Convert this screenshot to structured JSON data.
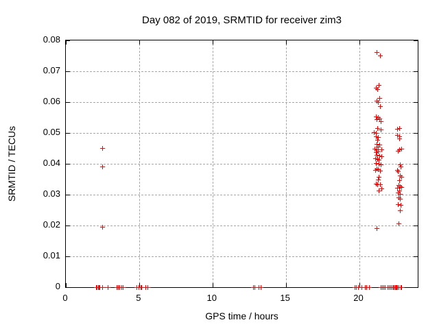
{
  "chart_data": {
    "type": "scatter",
    "title": "Day 082 of 2019, SRMTID for receiver zim3",
    "xlabel": "GPS time / hours",
    "ylabel": "SRMTID / TECUs",
    "xlim": [
      0,
      24
    ],
    "ylim": [
      0,
      0.08
    ],
    "xticks": [
      0,
      5,
      10,
      15,
      20
    ],
    "xtick_labels": [
      "0",
      "5",
      "10",
      "15",
      "20"
    ],
    "yticks": [
      0,
      0.01,
      0.02,
      0.03,
      0.04,
      0.05,
      0.06,
      0.07,
      0.08
    ],
    "ytick_labels": [
      "0",
      "0.01",
      "0.02",
      "0.03",
      "0.04",
      "0.05",
      "0.06",
      "0.07",
      "0.08"
    ],
    "grid": true,
    "legend": "none",
    "marker": "plus",
    "marker_color": "#ff0000",
    "series": [
      {
        "name": "SRMTID",
        "points": [
          [
            2.49,
            0.0451
          ],
          [
            2.5,
            0.039
          ],
          [
            2.48,
            0.0195
          ],
          [
            21.22,
            0.0762
          ],
          [
            21.45,
            0.075
          ],
          [
            21.36,
            0.0655
          ],
          [
            21.17,
            0.0645
          ],
          [
            21.28,
            0.0641
          ],
          [
            21.4,
            0.0612
          ],
          [
            21.2,
            0.0603
          ],
          [
            21.31,
            0.06
          ],
          [
            21.47,
            0.0585
          ],
          [
            21.19,
            0.0553
          ],
          [
            21.3,
            0.0549
          ],
          [
            21.23,
            0.0544
          ],
          [
            21.4,
            0.0545
          ],
          [
            21.5,
            0.0536
          ],
          [
            21.28,
            0.0514
          ],
          [
            21.5,
            0.0511
          ],
          [
            21.04,
            0.0501
          ],
          [
            21.18,
            0.0499
          ],
          [
            21.17,
            0.0488
          ],
          [
            21.31,
            0.0486
          ],
          [
            21.25,
            0.0477
          ],
          [
            21.2,
            0.0463
          ],
          [
            21.4,
            0.0461
          ],
          [
            21.3,
            0.0454
          ],
          [
            21.08,
            0.0448
          ],
          [
            21.2,
            0.0446
          ],
          [
            21.53,
            0.0446
          ],
          [
            21.3,
            0.0439
          ],
          [
            21.17,
            0.0437
          ],
          [
            21.2,
            0.0428
          ],
          [
            21.4,
            0.0426
          ],
          [
            21.53,
            0.0424
          ],
          [
            21.1,
            0.0417
          ],
          [
            21.27,
            0.0415
          ],
          [
            21.35,
            0.0412
          ],
          [
            21.17,
            0.0401
          ],
          [
            21.35,
            0.0399
          ],
          [
            21.48,
            0.0397
          ],
          [
            21.2,
            0.0384
          ],
          [
            21.3,
            0.0381
          ],
          [
            21.13,
            0.0379
          ],
          [
            21.45,
            0.0377
          ],
          [
            21.35,
            0.0357
          ],
          [
            21.3,
            0.0348
          ],
          [
            21.15,
            0.0335
          ],
          [
            21.27,
            0.0332
          ],
          [
            21.45,
            0.0333
          ],
          [
            21.35,
            0.0313
          ],
          [
            21.53,
            0.0318
          ],
          [
            21.2,
            0.019
          ],
          [
            22.74,
            0.0514
          ],
          [
            22.62,
            0.0512
          ],
          [
            22.6,
            0.0492
          ],
          [
            22.74,
            0.0488
          ],
          [
            22.78,
            0.0481
          ],
          [
            22.88,
            0.0448
          ],
          [
            22.74,
            0.0446
          ],
          [
            22.65,
            0.0441
          ],
          [
            22.79,
            0.0397
          ],
          [
            22.85,
            0.039
          ],
          [
            22.6,
            0.0379
          ],
          [
            22.69,
            0.0374
          ],
          [
            22.8,
            0.0362
          ],
          [
            22.88,
            0.0357
          ],
          [
            22.78,
            0.0346
          ],
          [
            22.7,
            0.033
          ],
          [
            22.8,
            0.0326
          ],
          [
            22.92,
            0.0324
          ],
          [
            22.62,
            0.0321
          ],
          [
            22.75,
            0.0313
          ],
          [
            22.68,
            0.0306
          ],
          [
            22.82,
            0.0301
          ],
          [
            22.7,
            0.029
          ],
          [
            22.81,
            0.0286
          ],
          [
            22.67,
            0.0268
          ],
          [
            22.85,
            0.0266
          ],
          [
            22.8,
            0.0248
          ],
          [
            22.7,
            0.0206
          ],
          [
            2.08,
            0
          ],
          [
            2.14,
            0
          ],
          [
            2.2,
            0
          ],
          [
            2.27,
            0
          ],
          [
            2.33,
            0
          ],
          [
            2.5,
            0
          ],
          [
            2.86,
            0
          ],
          [
            3.5,
            0
          ],
          [
            3.58,
            0
          ],
          [
            3.65,
            0
          ],
          [
            3.8,
            0
          ],
          [
            3.9,
            0
          ],
          [
            4.85,
            0
          ],
          [
            4.97,
            0
          ],
          [
            5.1,
            0
          ],
          [
            5.18,
            0
          ],
          [
            5.45,
            0
          ],
          [
            5.6,
            0
          ],
          [
            12.8,
            0
          ],
          [
            12.9,
            0
          ],
          [
            13.15,
            0
          ],
          [
            13.3,
            0
          ],
          [
            19.74,
            0
          ],
          [
            19.83,
            0
          ],
          [
            19.95,
            0
          ],
          [
            20.2,
            0
          ],
          [
            20.42,
            0
          ],
          [
            20.52,
            0
          ],
          [
            20.7,
            0
          ],
          [
            21.5,
            0
          ],
          [
            21.58,
            0
          ],
          [
            21.7,
            0
          ],
          [
            21.78,
            0
          ],
          [
            21.98,
            0
          ],
          [
            22.06,
            0
          ],
          [
            22.16,
            0
          ],
          [
            22.24,
            0
          ],
          [
            22.33,
            0
          ],
          [
            22.4,
            0
          ],
          [
            22.46,
            0
          ],
          [
            22.52,
            0
          ],
          [
            22.58,
            0
          ],
          [
            22.64,
            0
          ],
          [
            22.7,
            0
          ],
          [
            22.85,
            0
          ],
          [
            22.92,
            0
          ]
        ]
      }
    ]
  }
}
